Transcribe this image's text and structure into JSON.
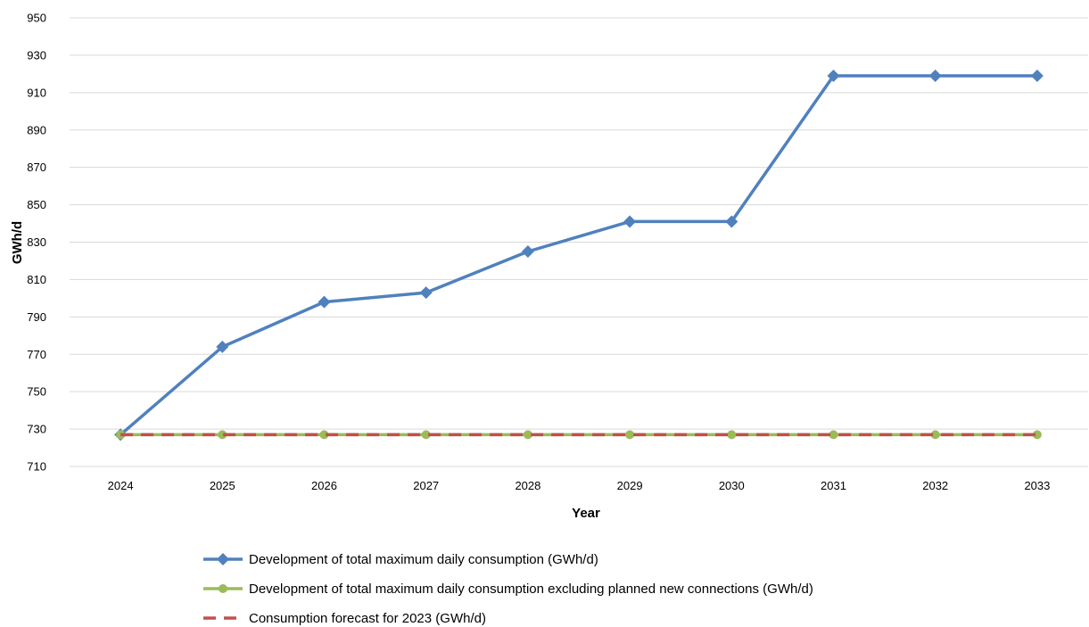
{
  "chart_data": {
    "type": "line",
    "title": "",
    "xlabel": "Year",
    "ylabel": "GWh/d",
    "categories": [
      "2024",
      "2025",
      "2026",
      "2027",
      "2028",
      "2029",
      "2030",
      "2031",
      "2032",
      "2033"
    ],
    "ylim": [
      710,
      950
    ],
    "yticks": [
      710,
      730,
      750,
      770,
      790,
      810,
      830,
      850,
      870,
      890,
      910,
      930,
      950
    ],
    "grid": true,
    "legend_position": "bottom",
    "series": [
      {
        "name": "Development of total maximum daily consumption (GWh/d)",
        "values": [
          727,
          774,
          798,
          803,
          825,
          841,
          841,
          919,
          919,
          919
        ],
        "color": "#4F81BD",
        "marker": "diamond",
        "dash": "solid"
      },
      {
        "name": "Development of total maximum daily consumption excluding planned new connections (GWh/d)",
        "values": [
          727,
          727,
          727,
          727,
          727,
          727,
          727,
          727,
          727,
          727
        ],
        "color": "#9BBB59",
        "marker": "circle",
        "dash": "solid"
      },
      {
        "name": "Consumption forecast for 2023 (GWh/d)",
        "values": [
          727,
          727,
          727,
          727,
          727,
          727,
          727,
          727,
          727,
          727
        ],
        "color": "#C0504D",
        "marker": "none",
        "dash": "dashed"
      }
    ]
  }
}
